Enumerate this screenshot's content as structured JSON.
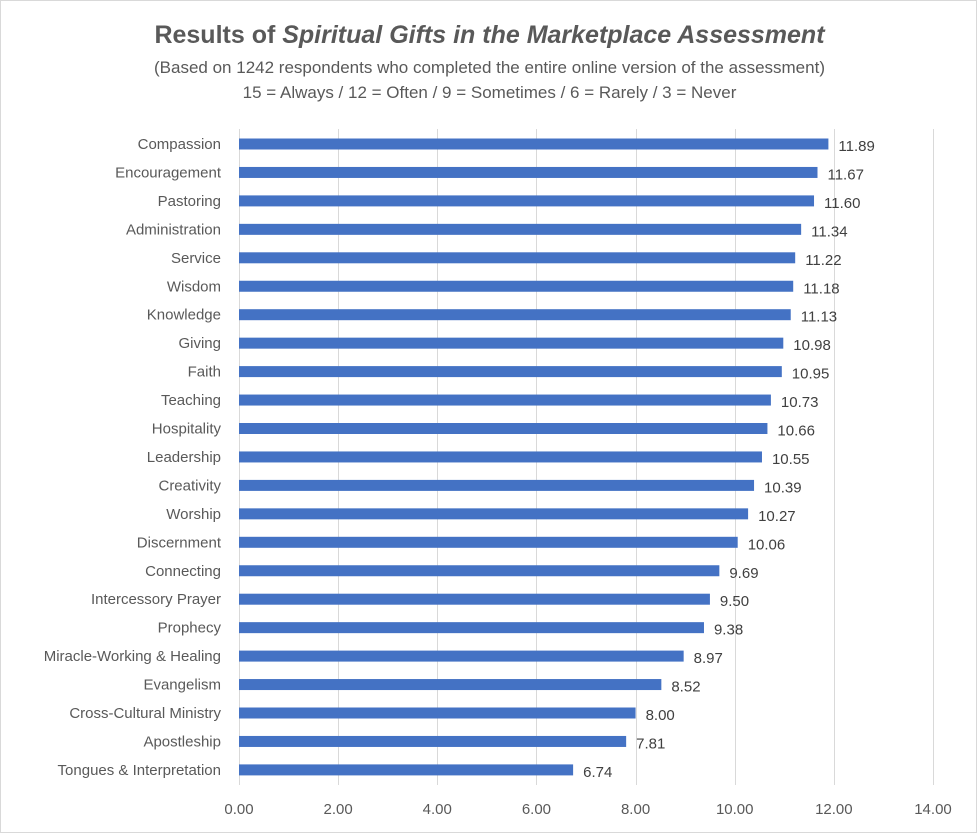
{
  "chart_data": {
    "type": "bar",
    "orientation": "horizontal",
    "title_prefix": "Results of ",
    "title_italic": "Spiritual Gifts in the Marketplace Assessment",
    "subtitle": "(Based on 1242 respondents who completed the entire online version of the assessment)",
    "subtitle2": "15 = Always / 12 = Often / 9 = Sometimes / 6 = Rarely / 3 = Never",
    "categories": [
      "Compassion",
      "Encouragement",
      "Pastoring",
      "Administration",
      "Service",
      "Wisdom",
      "Knowledge",
      "Giving",
      "Faith",
      "Teaching",
      "Hospitality",
      "Leadership",
      "Creativity",
      "Worship",
      "Discernment",
      "Connecting",
      "Intercessory Prayer",
      "Prophecy",
      "Miracle-Working & Healing",
      "Evangelism",
      "Cross-Cultural Ministry",
      "Apostleship",
      "Tongues & Interpretation"
    ],
    "values": [
      11.89,
      11.67,
      11.6,
      11.34,
      11.22,
      11.18,
      11.13,
      10.98,
      10.95,
      10.73,
      10.66,
      10.55,
      10.39,
      10.27,
      10.06,
      9.69,
      9.5,
      9.38,
      8.97,
      8.52,
      8.0,
      7.81,
      6.74
    ],
    "value_labels": [
      "11.89",
      "11.67",
      "11.60",
      "11.34",
      "11.22",
      "11.18",
      "11.13",
      "10.98",
      "10.95",
      "10.73",
      "10.66",
      "10.55",
      "10.39",
      "10.27",
      "10.06",
      "9.69",
      "9.50",
      "9.38",
      "8.97",
      "8.52",
      "8.00",
      "7.81",
      "6.74"
    ],
    "xlim": [
      0,
      14
    ],
    "x_ticks": [
      0,
      2,
      4,
      6,
      8,
      10,
      12,
      14
    ],
    "x_tick_labels": [
      "0.00",
      "2.00",
      "4.00",
      "6.00",
      "8.00",
      "10.00",
      "12.00",
      "14.00"
    ],
    "grid": "vertical",
    "bar_color": "#4472c4",
    "grid_color": "#d9d9d9"
  }
}
